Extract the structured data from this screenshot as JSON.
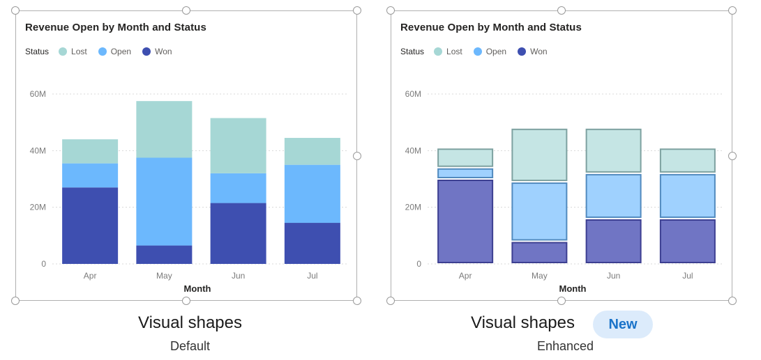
{
  "colors": {
    "lost": "#a6d7d5",
    "open": "#6cb8fd",
    "won": "#3e4fb0",
    "axis_text": "#7a7a7a",
    "grid": "#d8d8d8"
  },
  "panels": [
    {
      "caption": "Visual shapes",
      "sub_caption": "Default",
      "badge": ""
    },
    {
      "caption": "Visual shapes",
      "sub_caption": "Enhanced",
      "badge": "New"
    }
  ],
  "chart_data": [
    {
      "type": "bar",
      "stacked": true,
      "style": "default",
      "title": "Revenue Open by Month and Status",
      "legend_title": "Status",
      "legend_position": "top-left",
      "xlabel": "Month",
      "ylabel": "",
      "categories": [
        "Apr",
        "May",
        "Jun",
        "Jul"
      ],
      "yticks": [
        "0",
        "20M",
        "40M",
        "60M"
      ],
      "ylim": [
        0,
        60000000
      ],
      "grid": true,
      "series": [
        {
          "name": "Won",
          "color": "#3e4fb0",
          "values": [
            27000000,
            6500000,
            21500000,
            14500000
          ]
        },
        {
          "name": "Open",
          "color": "#6cb8fd",
          "values": [
            8500000,
            31000000,
            10500000,
            20500000
          ]
        },
        {
          "name": "Lost",
          "color": "#a6d7d5",
          "values": [
            8500000,
            20000000,
            19500000,
            9500000
          ]
        }
      ]
    },
    {
      "type": "bar",
      "stacked": true,
      "style": "enhanced",
      "title": "Revenue Open by Month and Status",
      "legend_title": "Status",
      "legend_position": "top-left",
      "xlabel": "Month",
      "ylabel": "",
      "categories": [
        "Apr",
        "May",
        "Jun",
        "Jul"
      ],
      "yticks": [
        "0",
        "20M",
        "40M",
        "60M"
      ],
      "ylim": [
        0,
        60000000
      ],
      "grid": true,
      "series": [
        {
          "name": "Won",
          "color": "#3e4fb0",
          "values": [
            30000000,
            8000000,
            16000000,
            16000000
          ]
        },
        {
          "name": "Open",
          "color": "#6cb8fd",
          "values": [
            4000000,
            21000000,
            16000000,
            16000000
          ]
        },
        {
          "name": "Lost",
          "color": "#a6d7d5",
          "values": [
            7000000,
            19000000,
            16000000,
            9000000
          ]
        }
      ]
    }
  ]
}
